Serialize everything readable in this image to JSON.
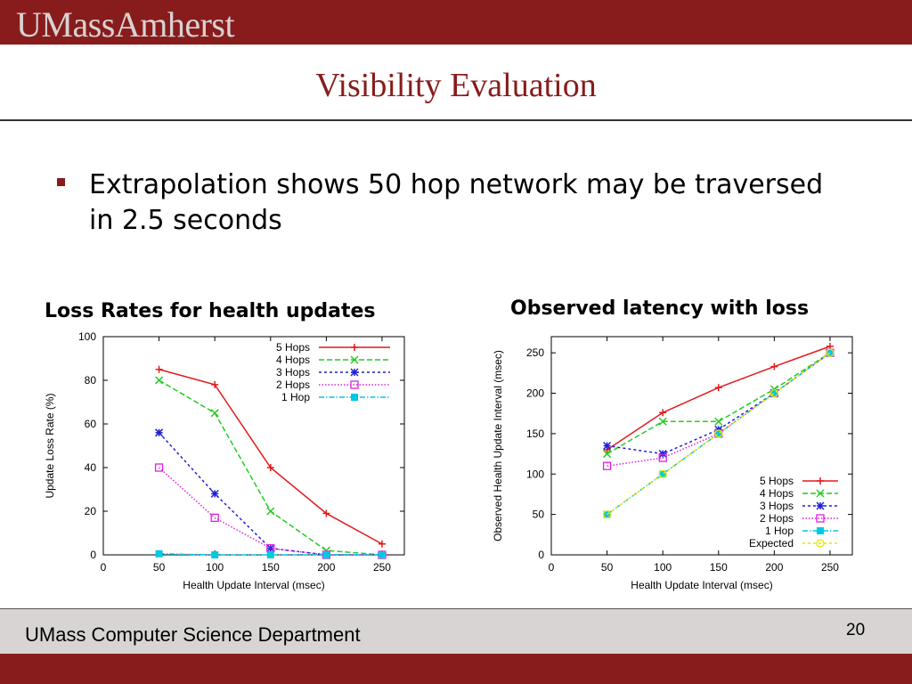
{
  "header": {
    "logo_text": "UMassAmherst",
    "brand_color": "#881c1c"
  },
  "slide": {
    "title": "Visibility Evaluation",
    "bullet": "Extrapolation shows 50 hop network may be traversed in 2.5 seconds"
  },
  "footer": {
    "department": "UMass Computer Science Department",
    "page_number": "20"
  },
  "chart_data": [
    {
      "type": "line",
      "title": "Loss Rates for health updates",
      "xlabel": "Health Update Interval (msec)",
      "ylabel": "Update Loss Rate (%)",
      "xlim": [
        0,
        270
      ],
      "ylim": [
        0,
        100
      ],
      "xticks": [
        0,
        50,
        100,
        150,
        200,
        250
      ],
      "yticks": [
        0,
        20,
        40,
        60,
        80,
        100
      ],
      "legend_position": "top-right",
      "x": [
        50,
        100,
        150,
        200,
        250
      ],
      "series": [
        {
          "name": "5 Hops",
          "values": [
            85,
            78,
            40,
            19,
            5
          ],
          "color": "#e31a1c",
          "marker": "plus",
          "dash": ""
        },
        {
          "name": "4 Hops",
          "values": [
            80,
            65,
            20,
            2,
            0
          ],
          "color": "#22cc22",
          "marker": "x",
          "dash": "6,3"
        },
        {
          "name": "3 Hops",
          "values": [
            56,
            28,
            3,
            0,
            0
          ],
          "color": "#1f1fd6",
          "marker": "star",
          "dash": "3,3"
        },
        {
          "name": "2 Hops",
          "values": [
            40,
            17,
            3,
            0,
            0
          ],
          "color": "#e020e0",
          "marker": "square",
          "dash": "1.5,2"
        },
        {
          "name": "1 Hop",
          "values": [
            0.5,
            0,
            0,
            0,
            0
          ],
          "color": "#00c8e0",
          "marker": "filled-square",
          "dash": "6,2,1.5,2"
        }
      ]
    },
    {
      "type": "line",
      "title": "Observed latency with loss",
      "xlabel": "Health Update Interval (msec)",
      "ylabel": "Observed Health Update Interval (msec)",
      "xlim": [
        0,
        270
      ],
      "ylim": [
        0,
        270
      ],
      "xticks": [
        0,
        50,
        100,
        150,
        200,
        250
      ],
      "yticks": [
        0,
        50,
        100,
        150,
        200,
        250
      ],
      "legend_position": "bottom-right",
      "x": [
        50,
        100,
        150,
        200,
        250
      ],
      "series": [
        {
          "name": "5 Hops",
          "values": [
            130,
            176,
            207,
            233,
            258
          ],
          "color": "#e31a1c",
          "marker": "plus",
          "dash": ""
        },
        {
          "name": "4 Hops",
          "values": [
            125,
            165,
            165,
            205,
            250
          ],
          "color": "#22cc22",
          "marker": "x",
          "dash": "6,3"
        },
        {
          "name": "3 Hops",
          "values": [
            135,
            125,
            155,
            200,
            250
          ],
          "color": "#1f1fd6",
          "marker": "star",
          "dash": "3,3"
        },
        {
          "name": "2 Hops",
          "values": [
            110,
            120,
            150,
            200,
            250
          ],
          "color": "#e020e0",
          "marker": "square",
          "dash": "1.5,2"
        },
        {
          "name": "1 Hop",
          "values": [
            50,
            100,
            150,
            200,
            250
          ],
          "color": "#00c8e0",
          "marker": "filled-square",
          "dash": "6,2,1.5,2"
        },
        {
          "name": "Expected",
          "values": [
            50,
            100,
            150,
            200,
            250
          ],
          "color": "#e6e600",
          "marker": "circle",
          "dash": "3,3"
        }
      ]
    }
  ]
}
